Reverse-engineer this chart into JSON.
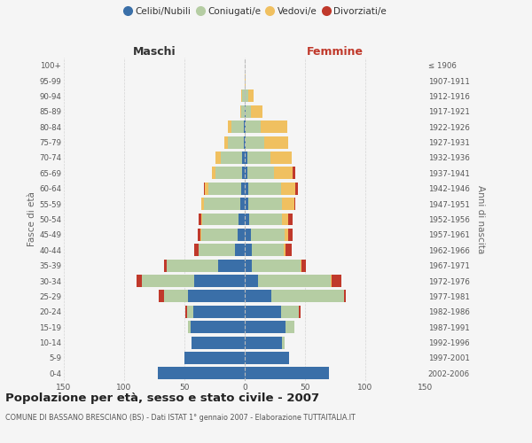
{
  "age_groups": [
    "0-4",
    "5-9",
    "10-14",
    "15-19",
    "20-24",
    "25-29",
    "30-34",
    "35-39",
    "40-44",
    "45-49",
    "50-54",
    "55-59",
    "60-64",
    "65-69",
    "70-74",
    "75-79",
    "80-84",
    "85-89",
    "90-94",
    "95-99",
    "100+"
  ],
  "birth_years": [
    "2002-2006",
    "1997-2001",
    "1992-1996",
    "1987-1991",
    "1982-1986",
    "1977-1981",
    "1972-1976",
    "1967-1971",
    "1962-1966",
    "1957-1961",
    "1952-1956",
    "1947-1951",
    "1942-1946",
    "1937-1941",
    "1932-1936",
    "1927-1931",
    "1922-1926",
    "1917-1921",
    "1912-1916",
    "1907-1911",
    "≤ 1906"
  ],
  "male": {
    "celibi": [
      72,
      50,
      44,
      45,
      43,
      47,
      42,
      22,
      8,
      6,
      5,
      4,
      3,
      2,
      2,
      1,
      1,
      0,
      0,
      0,
      0
    ],
    "coniugati": [
      0,
      0,
      0,
      2,
      5,
      20,
      43,
      43,
      30,
      30,
      30,
      30,
      27,
      22,
      18,
      13,
      10,
      3,
      2,
      0,
      0
    ],
    "vedovi": [
      0,
      0,
      0,
      0,
      0,
      0,
      0,
      0,
      0,
      1,
      1,
      2,
      3,
      3,
      4,
      3,
      3,
      1,
      1,
      0,
      0
    ],
    "divorziati": [
      0,
      0,
      0,
      0,
      1,
      4,
      5,
      2,
      4,
      2,
      2,
      0,
      1,
      0,
      0,
      0,
      0,
      0,
      0,
      0,
      0
    ]
  },
  "female": {
    "nubili": [
      70,
      37,
      31,
      34,
      30,
      22,
      11,
      6,
      6,
      5,
      4,
      3,
      3,
      2,
      2,
      1,
      1,
      1,
      0,
      0,
      0
    ],
    "coniugate": [
      0,
      0,
      2,
      7,
      15,
      60,
      60,
      40,
      26,
      28,
      27,
      28,
      27,
      22,
      19,
      15,
      12,
      4,
      3,
      0,
      0
    ],
    "vedove": [
      0,
      0,
      0,
      0,
      0,
      0,
      1,
      1,
      2,
      3,
      5,
      10,
      12,
      16,
      18,
      20,
      22,
      10,
      4,
      1,
      0
    ],
    "divorziate": [
      0,
      0,
      0,
      0,
      1,
      2,
      8,
      4,
      5,
      4,
      4,
      1,
      2,
      2,
      0,
      0,
      0,
      0,
      0,
      0,
      0
    ]
  },
  "colors": {
    "celibi": "#3a6fa8",
    "coniugati": "#b5cda3",
    "vedovi": "#f0c060",
    "divorziati": "#c0392b"
  },
  "legend_labels": [
    "Celibi/Nubili",
    "Coniugati/e",
    "Vedovi/e",
    "Divorziati/e"
  ],
  "title": "Popolazione per età, sesso e stato civile - 2007",
  "subtitle": "COMUNE DI BASSANO BRESCIANO (BS) - Dati ISTAT 1° gennaio 2007 - Elaborazione TUTTAITALIA.IT",
  "xlabel_left": "Maschi",
  "xlabel_right": "Femmine",
  "ylabel_left": "Fasce di età",
  "ylabel_right": "Anni di nascita",
  "xlim": 150,
  "background_color": "#f5f5f5",
  "grid_color": "#cccccc"
}
